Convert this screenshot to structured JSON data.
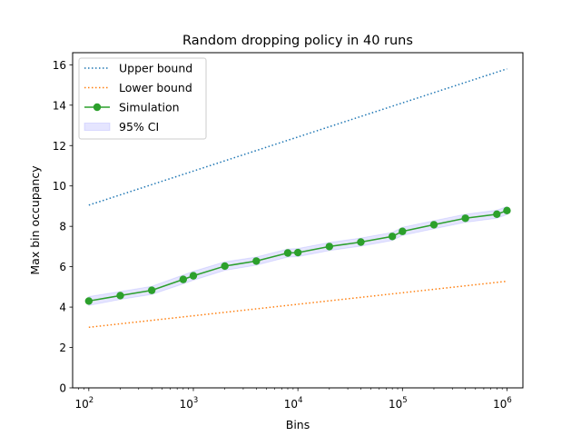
{
  "chart_data": {
    "type": "line",
    "title": "Random dropping policy in 40 runs",
    "xlabel": "Bins",
    "ylabel": "Max bin occupancy",
    "xscale": "log",
    "xlim": [
      70,
      1420000
    ],
    "ylim": [
      0,
      16.6
    ],
    "grid": false,
    "legend_position": "top-left",
    "x_ticks": [
      {
        "value": 100,
        "base": "10",
        "exp": "2"
      },
      {
        "value": 1000,
        "base": "10",
        "exp": "3"
      },
      {
        "value": 10000,
        "base": "10",
        "exp": "4"
      },
      {
        "value": 100000,
        "base": "10",
        "exp": "5"
      },
      {
        "value": 1000000,
        "base": "10",
        "exp": "6"
      }
    ],
    "y_ticks": [
      {
        "value": 0,
        "label": "0"
      },
      {
        "value": 2,
        "label": "2"
      },
      {
        "value": 4,
        "label": "4"
      },
      {
        "value": 6,
        "label": "6"
      },
      {
        "value": 8,
        "label": "8"
      },
      {
        "value": 10,
        "label": "10"
      },
      {
        "value": 12,
        "label": "12"
      },
      {
        "value": 14,
        "label": "14"
      },
      {
        "value": 16,
        "label": "16"
      }
    ],
    "series": [
      {
        "name": "Upper bound",
        "style": "dotted",
        "color": "#1f77b4",
        "x": [
          100,
          1000000
        ],
        "y": [
          9.05,
          15.8
        ]
      },
      {
        "name": "Lower bound",
        "style": "dotted",
        "color": "#ff7f0e",
        "x": [
          100,
          1000000
        ],
        "y": [
          3.0,
          5.28
        ]
      },
      {
        "name": "Simulation",
        "style": "solid-marker",
        "color": "#2ca02c",
        "x": [
          100,
          200,
          400,
          800,
          1000,
          2000,
          4000,
          8000,
          10000,
          20000,
          40000,
          80000,
          100000,
          200000,
          400000,
          800000,
          1000000
        ],
        "y": [
          4.3,
          4.57,
          4.83,
          5.37,
          5.55,
          6.03,
          6.28,
          6.68,
          6.7,
          7.0,
          7.22,
          7.5,
          7.75,
          8.08,
          8.4,
          8.6,
          8.78
        ]
      }
    ],
    "ci": {
      "name": "95% CI",
      "color": "#0000ff",
      "x": [
        100,
        200,
        400,
        800,
        1000,
        2000,
        4000,
        8000,
        10000,
        20000,
        40000,
        80000,
        100000,
        200000,
        400000,
        800000,
        1000000
      ],
      "lower": [
        4.08,
        4.38,
        4.63,
        5.15,
        5.33,
        5.82,
        6.08,
        6.48,
        6.5,
        6.8,
        7.02,
        7.3,
        7.55,
        7.88,
        8.2,
        8.4,
        8.58
      ],
      "upper": [
        4.52,
        4.77,
        5.03,
        5.59,
        5.77,
        6.24,
        6.48,
        6.88,
        6.9,
        7.2,
        7.42,
        7.7,
        7.95,
        8.28,
        8.6,
        8.8,
        8.98
      ]
    }
  }
}
